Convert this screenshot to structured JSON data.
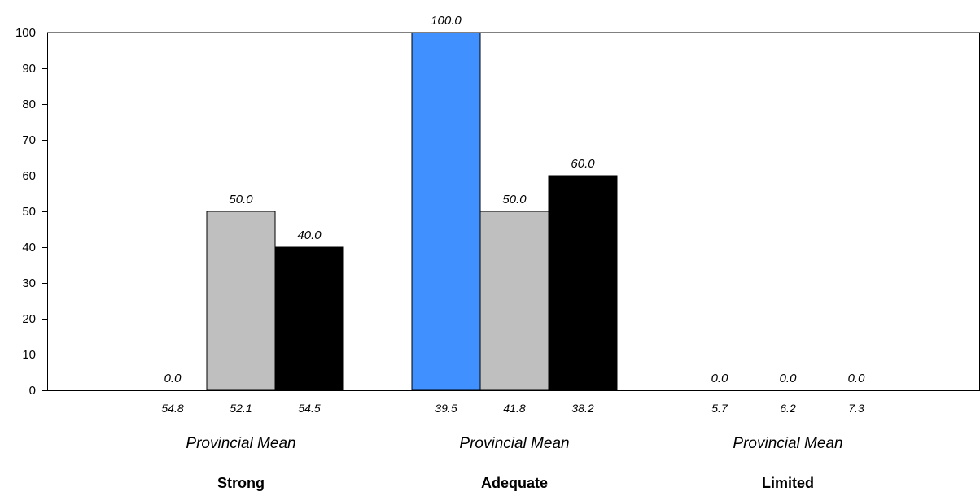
{
  "chart_data": {
    "type": "bar",
    "ylim": [
      0,
      100
    ],
    "y_ticks": [
      "0",
      "10",
      "20",
      "30",
      "40",
      "50",
      "60",
      "70",
      "80",
      "90",
      "100"
    ],
    "grid": false,
    "categories": [
      "Strong",
      "Adequate",
      "Limited"
    ],
    "group_sublabel": "Provincial Mean",
    "series": [
      {
        "color": "#4090FF",
        "values": [
          0.0,
          100.0,
          0.0
        ],
        "value_labels": [
          "0.0",
          "100.0",
          "0.0"
        ],
        "provincial_means": [
          "54.8",
          "39.5",
          "5.7"
        ]
      },
      {
        "color": "#BFBFBF",
        "values": [
          50.0,
          50.0,
          0.0
        ],
        "value_labels": [
          "50.0",
          "50.0",
          "0.0"
        ],
        "provincial_means": [
          "52.1",
          "41.8",
          "6.2"
        ]
      },
      {
        "color": "#000000",
        "values": [
          40.0,
          60.0,
          0.0
        ],
        "value_labels": [
          "40.0",
          "60.0",
          "0.0"
        ],
        "provincial_means": [
          "54.5",
          "38.2",
          "7.3"
        ]
      }
    ]
  }
}
